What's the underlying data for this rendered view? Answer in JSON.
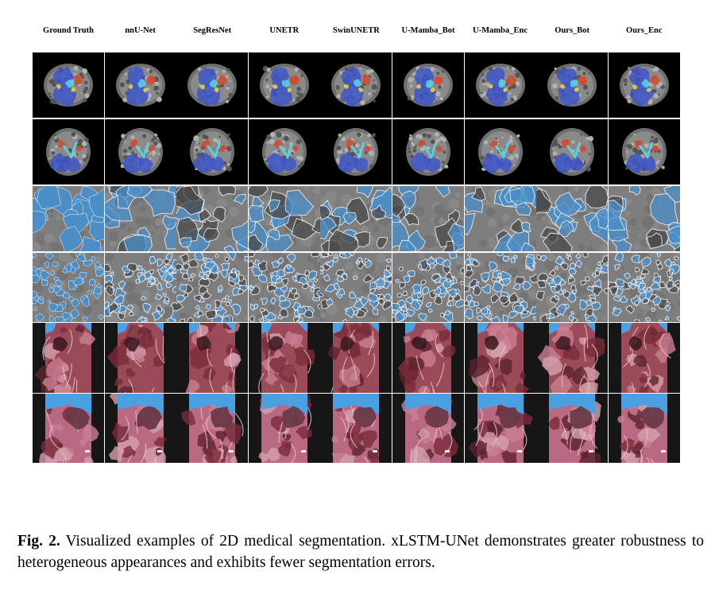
{
  "columns": [
    "Ground Truth",
    "nnU-Net",
    "SegResNet",
    "UNETR",
    "SwinUNETR",
    "U-Mamba_Bot",
    "U-Mamba_Enc",
    "Ours_Bot",
    "Ours_Enc"
  ],
  "rows": [
    {
      "kind": "abdomen-mri-axial"
    },
    {
      "kind": "abdomen-mri-coronal"
    },
    {
      "kind": "cell-microscopy-sparse"
    },
    {
      "kind": "cell-microscopy-dense"
    },
    {
      "kind": "endoscopy-surgical-a"
    },
    {
      "kind": "endoscopy-surgical-b"
    }
  ],
  "colors": {
    "organ_blue": "#3d55c8",
    "organ_red": "#d24a2e",
    "organ_cyan": "#58d6e6",
    "organ_yellow": "#e8d23a",
    "cell_blue": "#4a8fc9",
    "tissue_pink": "#b3606f",
    "instrument_blue": "#4aa0e0"
  },
  "caption": {
    "label": "Fig. 2.",
    "text": "Visualized examples of 2D medical segmentation. xLSTM-UNet demonstrates greater robustness to heterogeneous appearances and exhibits fewer segmentation errors."
  }
}
